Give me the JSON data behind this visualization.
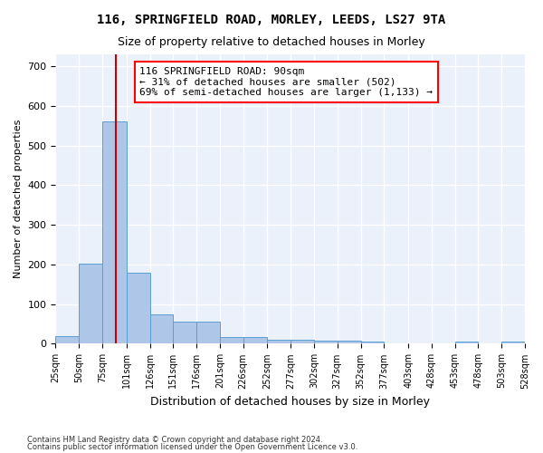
{
  "title1": "116, SPRINGFIELD ROAD, MORLEY, LEEDS, LS27 9TA",
  "title2": "Size of property relative to detached houses in Morley",
  "xlabel": "Distribution of detached houses by size in Morley",
  "ylabel": "Number of detached properties",
  "bar_color": "#aec6e8",
  "bar_edge_color": "#5a9fd4",
  "background_color": "#eaf1fb",
  "grid_color": "#ffffff",
  "annotation_text": "116 SPRINGFIELD ROAD: 90sqm\n← 31% of detached houses are smaller (502)\n69% of semi-detached houses are larger (1,133) →",
  "vline_x": 90,
  "vline_color": "#cc0000",
  "footer1": "Contains HM Land Registry data © Crown copyright and database right 2024.",
  "footer2": "Contains public sector information licensed under the Open Government Licence v3.0.",
  "bin_edges": [
    25,
    50,
    75,
    101,
    126,
    151,
    176,
    201,
    226,
    252,
    277,
    302,
    327,
    352,
    377,
    403,
    428,
    453,
    478,
    503,
    528
  ],
  "bin_heights": [
    20,
    202,
    560,
    180,
    75,
    55,
    55,
    18,
    18,
    10,
    10,
    8,
    8,
    5,
    0,
    0,
    0,
    5,
    0,
    5
  ],
  "ylim": [
    0,
    730
  ],
  "yticks": [
    0,
    100,
    200,
    300,
    400,
    500,
    600,
    700
  ]
}
